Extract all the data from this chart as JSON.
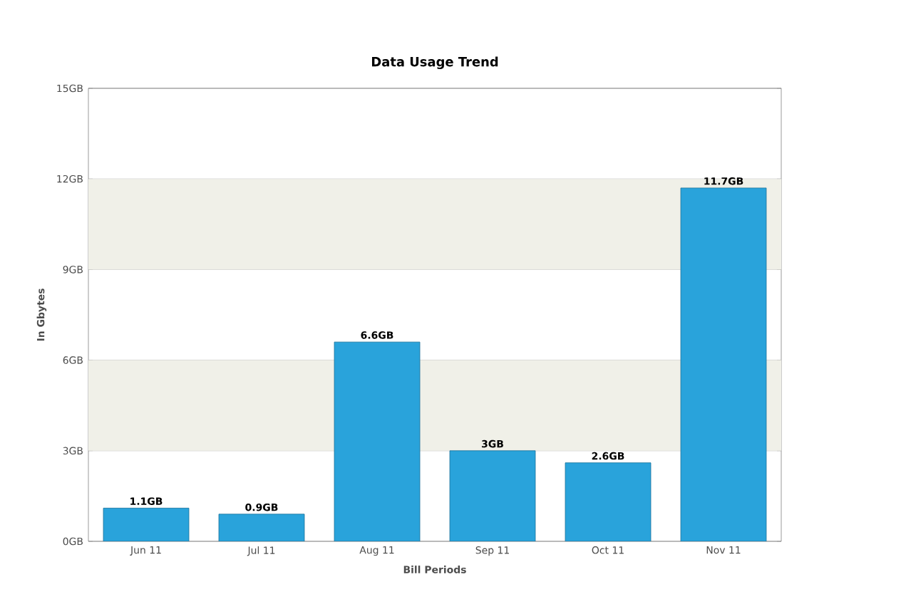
{
  "chart_data": {
    "type": "bar",
    "title": "Data Usage Trend",
    "xlabel": "Bill Periods",
    "ylabel": "In Gbytes",
    "categories": [
      "Jun 11",
      "Jul 11",
      "Aug 11",
      "Sep 11",
      "Oct 11",
      "Nov 11"
    ],
    "values": [
      1.1,
      0.9,
      6.6,
      3,
      2.6,
      11.7
    ],
    "value_labels": [
      "1.1GB",
      "0.9GB",
      "6.6GB",
      "3GB",
      "2.6GB",
      "11.7GB"
    ],
    "color": "#29a3db",
    "ylim": [
      0,
      15
    ],
    "yticks": [
      {
        "value": 0,
        "label": "0GB"
      },
      {
        "value": 3,
        "label": "3GB"
      },
      {
        "value": 6,
        "label": "6GB"
      },
      {
        "value": 9,
        "label": "9GB"
      },
      {
        "value": 12,
        "label": "12GB"
      },
      {
        "value": 15,
        "label": "15GB"
      }
    ],
    "grid": "y",
    "bands": [
      {
        "axis": "y",
        "from": 3,
        "to": 6,
        "color": "#f0f0e8"
      },
      {
        "axis": "y",
        "from": 9,
        "to": 12,
        "color": "#f0f0e8"
      }
    ]
  }
}
